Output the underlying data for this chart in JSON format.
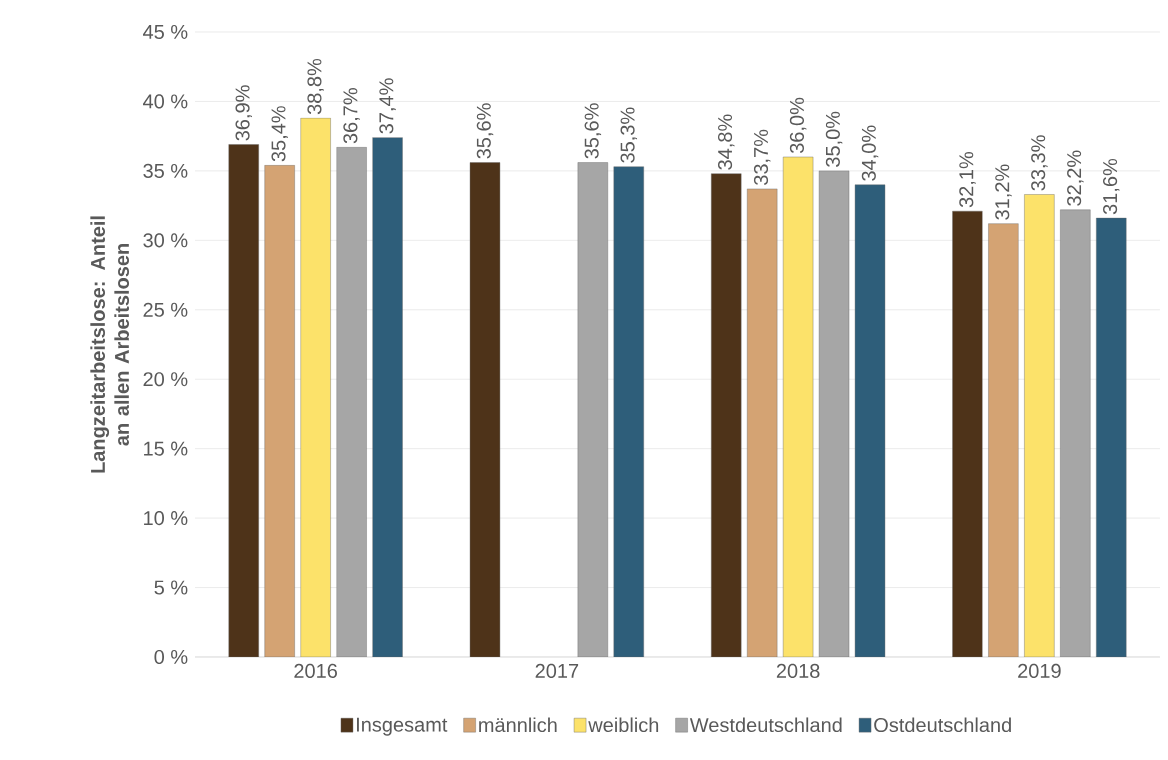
{
  "chart_data": {
    "type": "bar",
    "ylabel": "Langzeitarbeitslose: Anteil an allen Arbeitslosen",
    "categories": [
      "2016",
      "2017",
      "2018",
      "2019"
    ],
    "series": [
      {
        "name": "Insgesamt",
        "color": "#4e3319",
        "values": [
          36.9,
          35.6,
          34.8,
          32.1
        ],
        "value_labels": [
          "36,9%",
          "35,6%",
          "34,8%",
          "32,1%"
        ]
      },
      {
        "name": "männlich",
        "color": "#d4a373",
        "values": [
          35.4,
          null,
          33.7,
          31.2
        ],
        "value_labels": [
          "35,4%",
          null,
          "33,7%",
          "31,2%"
        ]
      },
      {
        "name": "weiblich",
        "color": "#fce26a",
        "values": [
          38.8,
          null,
          36.0,
          33.3
        ],
        "value_labels": [
          "38,8%",
          null,
          "36,0%",
          "33,3%"
        ]
      },
      {
        "name": "Westdeutschland",
        "color": "#a6a6a6",
        "values": [
          36.7,
          35.6,
          35.0,
          32.2
        ],
        "value_labels": [
          "36,7%",
          "35,6%",
          "35,0%",
          "32,2%"
        ]
      },
      {
        "name": "Ostdeutschland",
        "color": "#2e5e7a",
        "values": [
          37.4,
          35.3,
          34.0,
          31.6
        ],
        "value_labels": [
          "37,4%",
          "35,3%",
          "34,0%",
          "31,6%"
        ]
      }
    ],
    "ylim": [
      0,
      45
    ],
    "yticks": [
      {
        "value": 0,
        "label": "0 %"
      },
      {
        "value": 5,
        "label": "5 %"
      },
      {
        "value": 10,
        "label": "10 %"
      },
      {
        "value": 15,
        "label": "15 %"
      },
      {
        "value": 20,
        "label": "20 %"
      },
      {
        "value": 25,
        "label": "25 %"
      },
      {
        "value": 30,
        "label": "30 %"
      },
      {
        "value": 35,
        "label": "35 %"
      },
      {
        "value": 40,
        "label": "40 %"
      },
      {
        "value": 45,
        "label": "45 %"
      }
    ],
    "grid": "y",
    "legend": "bottom"
  }
}
